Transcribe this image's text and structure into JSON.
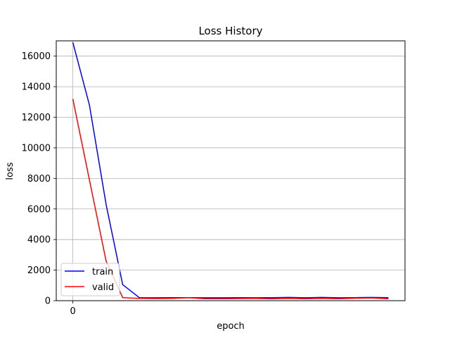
{
  "chart_data": {
    "type": "line",
    "title": "Loss History",
    "xlabel": "epoch",
    "ylabel": "loss",
    "xlim": [
      -1.0,
      20.0
    ],
    "ylim": [
      0,
      17000
    ],
    "x_ticks": [
      0
    ],
    "x_tick_labels": [
      "0"
    ],
    "y_ticks": [
      0,
      2000,
      4000,
      6000,
      8000,
      10000,
      12000,
      14000,
      16000
    ],
    "y_tick_labels": [
      "0",
      "2000",
      "4000",
      "6000",
      "8000",
      "10000",
      "12000",
      "14000",
      "16000"
    ],
    "grid": "on",
    "legend_location": "lower-left",
    "x": [
      0,
      1,
      2,
      3,
      4,
      5,
      6,
      7,
      8,
      9,
      10,
      11,
      12,
      13,
      14,
      15,
      16,
      17,
      18,
      19
    ],
    "series": [
      {
        "name": "train",
        "color": "#0000ff",
        "values": [
          16900,
          12800,
          6300,
          1050,
          200,
          190,
          200,
          200,
          190,
          190,
          200,
          190,
          200,
          210,
          190,
          210,
          190,
          200,
          210,
          200
        ]
      },
      {
        "name": "valid",
        "color": "#ff0000",
        "values": [
          13200,
          7900,
          2600,
          200,
          150,
          140,
          150,
          190,
          130,
          130,
          140,
          150,
          120,
          150,
          130,
          150,
          130,
          160,
          180,
          130
        ]
      }
    ]
  }
}
